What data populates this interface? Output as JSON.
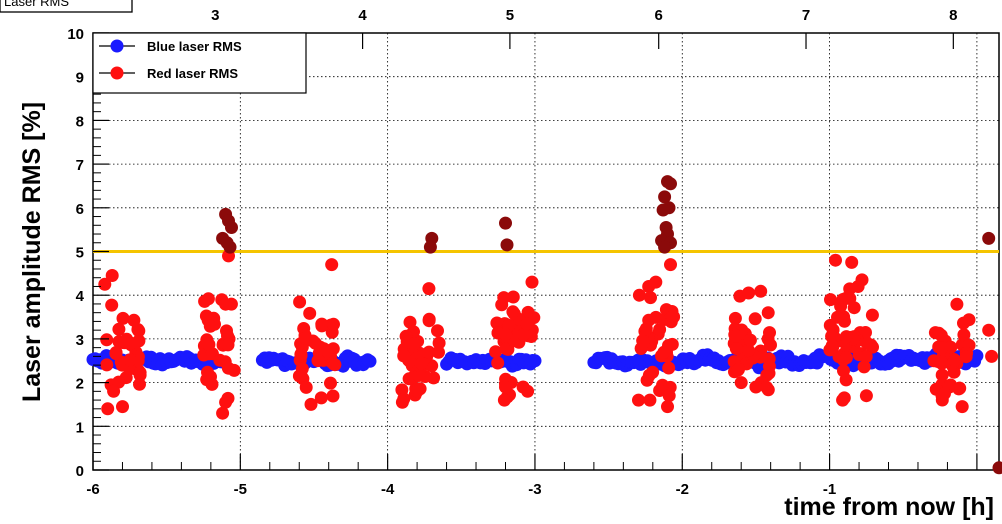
{
  "chart_data": {
    "type": "scatter",
    "title": "Laser RMS",
    "xlabel": "time from now [h]",
    "ylabel": "Laser amplitude RMS [%]",
    "xlim": [
      -6,
      0.15
    ],
    "ylim": [
      0,
      10
    ],
    "x_ticks": [
      "-6",
      "-5",
      "-4",
      "-3",
      "-2",
      "-1",
      "0"
    ],
    "x_tick_values": [
      -6,
      -5,
      -4,
      -3,
      -2,
      -1,
      0
    ],
    "y_ticks": [
      "0",
      "1",
      "2",
      "3",
      "4",
      "5",
      "6",
      "7",
      "8",
      "9",
      "10"
    ],
    "top_axis_labels": [
      "3",
      "4",
      "5",
      "6",
      "7",
      "8"
    ],
    "top_axis_positions": [
      -5.17,
      -4.17,
      -3.17,
      -2.16,
      -1.16,
      -0.16
    ],
    "grid": true,
    "legend_position": "top-left",
    "threshold": {
      "value": 5.0,
      "color": "#f5c400"
    },
    "colors": {
      "blue": "#1a1aff",
      "red": "#ff1010",
      "darkred": "#8b0a0a"
    },
    "series": [
      {
        "name": "Blue laser RMS",
        "color": "#1a1aff",
        "segments": [
          [
            -6.0,
            -5.12,
            2.5,
            0.07
          ],
          [
            -4.85,
            -4.12,
            2.5,
            0.08
          ],
          [
            -3.6,
            -3.0,
            2.48,
            0.07
          ],
          [
            -2.6,
            -1.95,
            2.45,
            0.08
          ],
          [
            -1.95,
            -1.1,
            2.5,
            0.08
          ],
          [
            -1.1,
            -0.5,
            2.5,
            0.08
          ],
          [
            -0.6,
            0.0,
            2.55,
            0.08
          ]
        ]
      },
      {
        "name": "Red laser RMS",
        "color": "#ff1010",
        "clusters": [
          {
            "x": [
              -5.92,
              -5.68
            ],
            "mean": 2.7,
            "spread": 0.55
          },
          {
            "x": [
              -5.25,
              -5.03
            ],
            "mean": 2.9,
            "spread": 0.6
          },
          {
            "x": [
              -4.6,
              -4.35
            ],
            "mean": 2.7,
            "spread": 0.5
          },
          {
            "x": [
              -3.92,
              -3.65
            ],
            "mean": 2.7,
            "spread": 0.55
          },
          {
            "x": [
              -3.27,
              -3.0
            ],
            "mean": 2.8,
            "spread": 0.55
          },
          {
            "x": [
              -2.3,
              -2.05
            ],
            "mean": 3.0,
            "spread": 0.6
          },
          {
            "x": [
              -1.65,
              -1.4
            ],
            "mean": 2.7,
            "spread": 0.5
          },
          {
            "x": [
              -1.0,
              -0.7
            ],
            "mean": 3.0,
            "spread": 0.65
          },
          {
            "x": [
              -0.3,
              -0.05
            ],
            "mean": 2.7,
            "spread": 0.45
          }
        ],
        "extra_points": [
          [
            -5.92,
            4.25
          ],
          [
            -5.87,
            4.45
          ],
          [
            -5.9,
            1.4
          ],
          [
            -5.8,
            1.45
          ],
          [
            -5.86,
            1.8
          ],
          [
            -5.12,
            1.3
          ],
          [
            -5.08,
            4.9
          ],
          [
            -5.1,
            1.55
          ],
          [
            -4.38,
            4.7
          ],
          [
            -4.52,
            1.5
          ],
          [
            -4.45,
            1.65
          ],
          [
            -3.9,
            1.55
          ],
          [
            -3.72,
            4.15
          ],
          [
            -3.8,
            1.8
          ],
          [
            -3.02,
            4.3
          ],
          [
            -3.05,
            1.8
          ],
          [
            -3.2,
            1.9
          ],
          [
            -2.22,
            1.6
          ],
          [
            -2.18,
            4.3
          ],
          [
            -2.1,
            1.45
          ],
          [
            -2.08,
            4.7
          ],
          [
            -1.55,
            4.05
          ],
          [
            -1.5,
            1.9
          ],
          [
            -1.6,
            2.0
          ],
          [
            -0.96,
            4.8
          ],
          [
            -0.85,
            4.75
          ],
          [
            -0.9,
            1.65
          ],
          [
            -0.78,
            4.35
          ],
          [
            -0.75,
            1.7
          ],
          [
            -0.1,
            1.45
          ],
          [
            -0.22,
            1.75
          ],
          [
            0.1,
            2.6
          ],
          [
            0.08,
            3.2
          ]
        ]
      },
      {
        "name": "",
        "color": "#8b0a0a",
        "points": [
          [
            -5.1,
            5.85
          ],
          [
            -5.08,
            5.7
          ],
          [
            -5.06,
            5.55
          ],
          [
            -5.12,
            5.3
          ],
          [
            -5.07,
            5.1
          ],
          [
            -5.09,
            5.2
          ],
          [
            -3.7,
            5.3
          ],
          [
            -3.71,
            5.1
          ],
          [
            -3.2,
            5.65
          ],
          [
            -3.19,
            5.15
          ],
          [
            -2.1,
            6.6
          ],
          [
            -2.08,
            6.55
          ],
          [
            -2.12,
            6.25
          ],
          [
            -2.09,
            6.0
          ],
          [
            -2.13,
            5.95
          ],
          [
            -2.11,
            5.55
          ],
          [
            -2.1,
            5.4
          ],
          [
            -2.14,
            5.25
          ],
          [
            -2.08,
            5.2
          ],
          [
            -2.12,
            5.1
          ],
          [
            0.08,
            5.3
          ],
          [
            0.15,
            0.05
          ]
        ]
      }
    ]
  }
}
